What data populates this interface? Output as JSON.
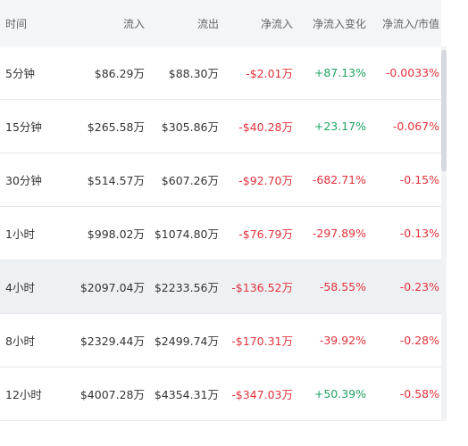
{
  "table": {
    "header": [
      "时间",
      "流入",
      "流出",
      "净流入",
      "净流入变化",
      "净流入/市值"
    ],
    "rows": [
      [
        "5分钟",
        "$86.29万",
        "$88.30万",
        "-$2.01万",
        "+87.13%",
        "-0.0033%"
      ],
      [
        "15分钟",
        "$265.58万",
        "$305.86万",
        "-$40.28万",
        "+23.17%",
        "-0.067%"
      ],
      [
        "30分钟",
        "$514.57万",
        "$607.26万",
        "-$92.70万",
        "-682.71%",
        "-0.15%"
      ],
      [
        "1小时",
        "$998.02万",
        "$1074.80万",
        "-$76.79万",
        "-297.89%",
        "-0.13%"
      ],
      [
        "4小时",
        "$2097.04万",
        "$2233.56万",
        "-$136.52万",
        "-58.55%",
        "-0.23%"
      ],
      [
        "8小时",
        "$2329.44万",
        "$2499.74万",
        "-$170.31万",
        "-39.92%",
        "-0.28%"
      ],
      [
        "12小时",
        "$4007.28万",
        "$4354.31万",
        "-$347.03万",
        "+50.39%",
        "-0.58%"
      ]
    ]
  }
}
